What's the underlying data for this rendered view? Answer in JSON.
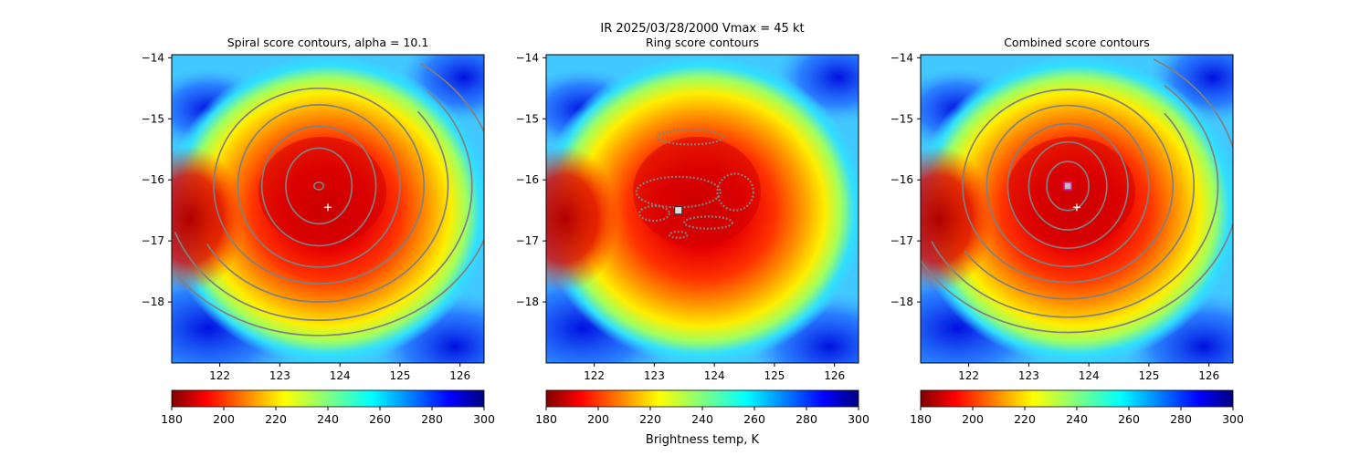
{
  "figure": {
    "suptitle_line1": "IR  2025/03/28/2000    Vmax = 45 kt",
    "colorbar_label": "Brightness temp, K"
  },
  "chart_data": [
    {
      "type": "heatmap",
      "title": "Spiral score contours, alpha = 10.1",
      "variable": "IR brightness temperature with spiral score contours",
      "xlim": [
        121.2,
        126.4
      ],
      "ylim": [
        -19.0,
        -13.95
      ],
      "xticks": [
        122,
        123,
        124,
        125,
        126
      ],
      "yticks": [
        -14,
        -15,
        -16,
        -17,
        -18
      ],
      "color_range": [
        180,
        300
      ],
      "colormap": "jet_r",
      "colorbar_ticks": [
        180,
        200,
        220,
        240,
        260,
        280,
        300
      ],
      "storm_center": [
        123.8,
        -16.45
      ],
      "center_marker": "+",
      "contour_center": [
        123.65,
        -16.1
      ],
      "contour_color": "#808080",
      "contour_levels": [
        {
          "type": "ellipse",
          "rx": 0.08,
          "ry": 0.06
        },
        {
          "type": "ellipse",
          "rx": 0.55,
          "ry": 0.62
        },
        {
          "type": "ellipse",
          "rx": 0.95,
          "ry": 0.98
        },
        {
          "type": "ellipse",
          "rx": 1.35,
          "ry": 1.33
        },
        {
          "type": "ellipse",
          "rx": 1.75,
          "ry": 1.6
        },
        {
          "type": "arc",
          "rx": 2.15,
          "ry": 1.9,
          "from_deg": 40,
          "to_deg": 210
        },
        {
          "type": "arc",
          "rx": 2.55,
          "ry": 2.2,
          "from_deg": 45,
          "to_deg": 200
        },
        {
          "type": "arc",
          "rx": 2.95,
          "ry": 2.45,
          "from_deg": 55,
          "to_deg": 190
        }
      ]
    },
    {
      "type": "heatmap",
      "title": "Ring score contours",
      "variable": "IR brightness temperature with ring score contours",
      "xlim": [
        121.2,
        126.4
      ],
      "ylim": [
        -19.0,
        -13.95
      ],
      "xticks": [
        122,
        123,
        124,
        125,
        126
      ],
      "yticks": [
        -14,
        -15,
        -16,
        -17,
        -18
      ],
      "color_range": [
        180,
        300
      ],
      "colormap": "jet_r",
      "colorbar_ticks": [
        180,
        200,
        220,
        240,
        260,
        280,
        300
      ],
      "storm_center": [
        123.4,
        -16.5
      ],
      "center_marker": "square",
      "ring_patches": [
        {
          "cx": 123.6,
          "cy": -15.3,
          "rx": 0.55,
          "ry": 0.12
        },
        {
          "cx": 123.4,
          "cy": -16.2,
          "rx": 0.7,
          "ry": 0.25
        },
        {
          "cx": 124.35,
          "cy": -16.2,
          "rx": 0.3,
          "ry": 0.3
        },
        {
          "cx": 123.0,
          "cy": -16.55,
          "rx": 0.25,
          "ry": 0.12
        },
        {
          "cx": 123.9,
          "cy": -16.7,
          "rx": 0.4,
          "ry": 0.1
        },
        {
          "cx": 123.4,
          "cy": -16.9,
          "rx": 0.15,
          "ry": 0.05
        }
      ]
    },
    {
      "type": "heatmap",
      "title": "Combined score contours",
      "variable": "IR brightness temperature with combined score contours",
      "xlim": [
        121.2,
        126.4
      ],
      "ylim": [
        -19.0,
        -13.95
      ],
      "xticks": [
        122,
        123,
        124,
        125,
        126
      ],
      "yticks": [
        -14,
        -15,
        -16,
        -17,
        -18
      ],
      "color_range": [
        180,
        300
      ],
      "colormap": "jet_r",
      "colorbar_ticks": [
        180,
        200,
        220,
        240,
        260,
        280,
        300
      ],
      "storm_center": [
        123.8,
        -16.45
      ],
      "center_marker": "+",
      "combined_max": [
        123.65,
        -16.1
      ],
      "combined_max_marker_color": "#c81ec8",
      "contour_center": [
        123.65,
        -16.1
      ],
      "contour_color": "#808080",
      "contour_levels": [
        {
          "type": "ellipse",
          "rx": 0.35,
          "ry": 0.4
        },
        {
          "type": "ellipse",
          "rx": 0.65,
          "ry": 0.72
        },
        {
          "type": "ellipse",
          "rx": 1.0,
          "ry": 1.02
        },
        {
          "type": "ellipse",
          "rx": 1.35,
          "ry": 1.32
        },
        {
          "type": "ellipse",
          "rx": 1.75,
          "ry": 1.58
        },
        {
          "type": "arc",
          "rx": 2.1,
          "ry": 1.85,
          "from_deg": 40,
          "to_deg": 215
        },
        {
          "type": "arc",
          "rx": 2.5,
          "ry": 2.15,
          "from_deg": 50,
          "to_deg": 205
        },
        {
          "type": "arc",
          "rx": 2.85,
          "ry": 2.4,
          "from_deg": 60,
          "to_deg": 190
        }
      ]
    }
  ]
}
